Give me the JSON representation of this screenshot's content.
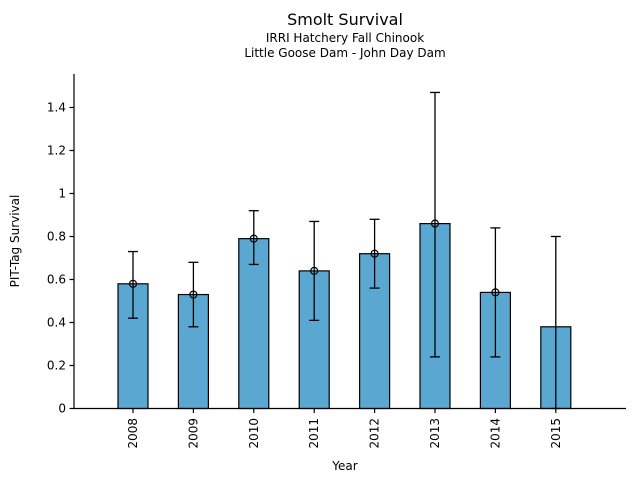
{
  "chart_data": {
    "type": "bar",
    "title": "Smolt Survival",
    "subtitle1": "IRRI Hatchery Fall Chinook",
    "subtitle2": "Little Goose Dam - John Day Dam",
    "xlabel": "Year",
    "ylabel": "PIT-Tag Survival",
    "categories": [
      "2008",
      "2009",
      "2010",
      "2011",
      "2012",
      "2013",
      "2014",
      "2015"
    ],
    "values": [
      0.58,
      0.53,
      0.79,
      0.64,
      0.72,
      0.86,
      0.54,
      0.38
    ],
    "error_low": [
      0.42,
      0.38,
      0.67,
      0.41,
      0.56,
      0.24,
      0.24,
      0.0
    ],
    "error_high": [
      0.73,
      0.68,
      0.92,
      0.87,
      0.88,
      1.47,
      0.84,
      0.8
    ],
    "has_marker": [
      true,
      true,
      true,
      true,
      true,
      true,
      true,
      false
    ],
    "marker_style": "open-circle",
    "yticks": [
      0,
      0.2,
      0.4,
      0.6,
      0.8,
      1,
      1.2,
      1.4
    ],
    "ytick_labels": [
      "0",
      "0.2",
      "0.4",
      "0.6",
      "0.8",
      "1",
      "1.2",
      "1.4"
    ],
    "ylim": [
      0,
      1.55
    ],
    "grid": false,
    "legend": false,
    "bar_color": "#5AA8D2",
    "bar_edge_color": "#000000",
    "error_color": "#000000",
    "background_color": "#FFFFFF"
  }
}
